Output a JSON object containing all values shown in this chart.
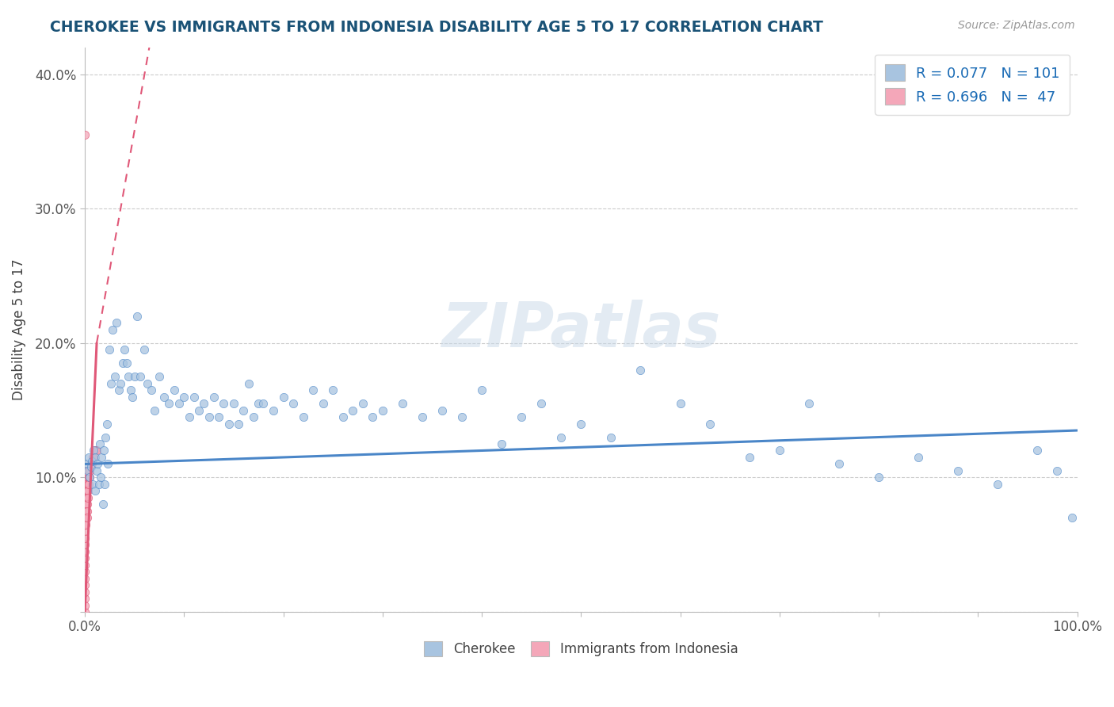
{
  "title": "CHEROKEE VS IMMIGRANTS FROM INDONESIA DISABILITY AGE 5 TO 17 CORRELATION CHART",
  "source": "Source: ZipAtlas.com",
  "ylabel": "Disability Age 5 to 17",
  "xlim": [
    0,
    1.0
  ],
  "ylim": [
    0,
    0.42
  ],
  "x_tick_labels": [
    "0.0%",
    "",
    "",
    "",
    "",
    "",
    "",
    "",
    "",
    "",
    "100.0%"
  ],
  "y_tick_labels": [
    "",
    "10.0%",
    "20.0%",
    "30.0%",
    "40.0%"
  ],
  "legend1_R": "0.077",
  "legend1_N": "101",
  "legend2_R": "0.696",
  "legend2_N": " 47",
  "blue_color": "#a8c4e0",
  "pink_color": "#f4a7b9",
  "trendline_blue": "#4a86c8",
  "trendline_pink": "#e05878",
  "watermark": "ZIPatlas",
  "cherokee_x": [
    0.002,
    0.003,
    0.004,
    0.005,
    0.006,
    0.007,
    0.008,
    0.009,
    0.01,
    0.01,
    0.012,
    0.013,
    0.014,
    0.015,
    0.016,
    0.017,
    0.018,
    0.019,
    0.02,
    0.021,
    0.022,
    0.023,
    0.025,
    0.026,
    0.028,
    0.03,
    0.032,
    0.034,
    0.036,
    0.038,
    0.04,
    0.042,
    0.044,
    0.046,
    0.048,
    0.05,
    0.053,
    0.056,
    0.06,
    0.063,
    0.067,
    0.07,
    0.075,
    0.08,
    0.085,
    0.09,
    0.095,
    0.1,
    0.105,
    0.11,
    0.115,
    0.12,
    0.125,
    0.13,
    0.135,
    0.14,
    0.145,
    0.15,
    0.155,
    0.16,
    0.165,
    0.17,
    0.175,
    0.18,
    0.19,
    0.2,
    0.21,
    0.22,
    0.23,
    0.24,
    0.25,
    0.26,
    0.27,
    0.28,
    0.29,
    0.3,
    0.32,
    0.34,
    0.36,
    0.38,
    0.4,
    0.42,
    0.44,
    0.46,
    0.48,
    0.5,
    0.53,
    0.56,
    0.6,
    0.63,
    0.67,
    0.7,
    0.73,
    0.76,
    0.8,
    0.84,
    0.88,
    0.92,
    0.96,
    0.98,
    0.995
  ],
  "cherokee_y": [
    0.11,
    0.105,
    0.115,
    0.1,
    0.108,
    0.112,
    0.095,
    0.12,
    0.09,
    0.115,
    0.105,
    0.11,
    0.095,
    0.125,
    0.1,
    0.115,
    0.08,
    0.12,
    0.095,
    0.13,
    0.14,
    0.11,
    0.195,
    0.17,
    0.21,
    0.175,
    0.215,
    0.165,
    0.17,
    0.185,
    0.195,
    0.185,
    0.175,
    0.165,
    0.16,
    0.175,
    0.22,
    0.175,
    0.195,
    0.17,
    0.165,
    0.15,
    0.175,
    0.16,
    0.155,
    0.165,
    0.155,
    0.16,
    0.145,
    0.16,
    0.15,
    0.155,
    0.145,
    0.16,
    0.145,
    0.155,
    0.14,
    0.155,
    0.14,
    0.15,
    0.17,
    0.145,
    0.155,
    0.155,
    0.15,
    0.16,
    0.155,
    0.145,
    0.165,
    0.155,
    0.165,
    0.145,
    0.15,
    0.155,
    0.145,
    0.15,
    0.155,
    0.145,
    0.15,
    0.145,
    0.165,
    0.125,
    0.145,
    0.155,
    0.13,
    0.14,
    0.13,
    0.18,
    0.155,
    0.14,
    0.115,
    0.12,
    0.155,
    0.11,
    0.1,
    0.115,
    0.105,
    0.095,
    0.12,
    0.105,
    0.07
  ],
  "indonesia_x": [
    0.0,
    0.0,
    0.0,
    0.0,
    0.0,
    0.0,
    0.0,
    0.0,
    0.0,
    0.0,
    0.0,
    0.0,
    0.0,
    0.0,
    0.0,
    0.0,
    0.0,
    0.0,
    0.0,
    0.0,
    0.001,
    0.001,
    0.001,
    0.001,
    0.001,
    0.001,
    0.001,
    0.001,
    0.001,
    0.002,
    0.002,
    0.002,
    0.002,
    0.002,
    0.003,
    0.003,
    0.003,
    0.004,
    0.004,
    0.005,
    0.005,
    0.006,
    0.007,
    0.008,
    0.009,
    0.01,
    0.012
  ],
  "indonesia_y": [
    0.0,
    0.005,
    0.01,
    0.015,
    0.02,
    0.025,
    0.03,
    0.035,
    0.04,
    0.045,
    0.05,
    0.055,
    0.06,
    0.065,
    0.07,
    0.075,
    0.08,
    0.085,
    0.09,
    0.355,
    0.095,
    0.1,
    0.105,
    0.095,
    0.085,
    0.08,
    0.075,
    0.07,
    0.065,
    0.09,
    0.085,
    0.08,
    0.075,
    0.07,
    0.095,
    0.09,
    0.085,
    0.1,
    0.095,
    0.105,
    0.1,
    0.11,
    0.11,
    0.115,
    0.115,
    0.12,
    0.12
  ],
  "blue_trend_x0": 0.0,
  "blue_trend_x1": 1.0,
  "blue_trend_y0": 0.11,
  "blue_trend_y1": 0.135,
  "pink_trend_solid_x0": 0.0,
  "pink_trend_solid_x1": 0.012,
  "pink_trend_y0": 0.0,
  "pink_trend_y1": 0.2,
  "pink_trend_dash_x0": 0.012,
  "pink_trend_dash_x1": 0.065,
  "pink_trend_dash_y0": 0.2,
  "pink_trend_dash_y1": 0.42
}
